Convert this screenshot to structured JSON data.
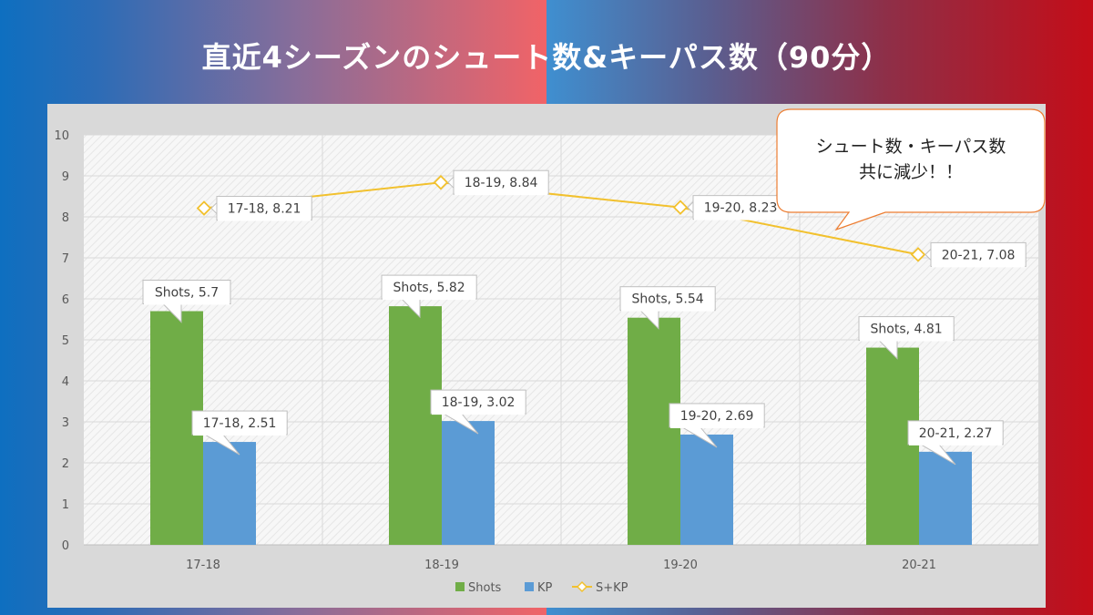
{
  "header": {
    "title": "直近4シーズンのシュート数&キーパス数（90分）"
  },
  "callout": {
    "lines": [
      "シュート数・キーパス数",
      "共に減少！！"
    ]
  },
  "colors": {
    "shots": "#70ad47",
    "kp": "#5b9bd5",
    "skp": "#f2c12e"
  },
  "chart_data": {
    "type": "bar",
    "categories": [
      "17-18",
      "18-19",
      "19-20",
      "20-21"
    ],
    "ylim": [
      0,
      10
    ],
    "yticks": [
      0,
      1,
      2,
      3,
      4,
      5,
      6,
      7,
      8,
      9,
      10
    ],
    "grid": true,
    "legend_position": "bottom",
    "series": [
      {
        "name": "Shots",
        "kind": "bar",
        "values": [
          5.7,
          5.82,
          5.54,
          4.81
        ],
        "labels": [
          "Shots, 5.7",
          "Shots, 5.82",
          "Shots, 5.54",
          "Shots, 4.81"
        ]
      },
      {
        "name": "KP",
        "kind": "bar",
        "values": [
          2.51,
          3.02,
          2.69,
          2.27
        ],
        "labels": [
          "17-18, 2.51",
          "18-19, 3.02",
          "19-20, 2.69",
          "20-21, 2.27"
        ]
      },
      {
        "name": "S+KP",
        "kind": "line",
        "values": [
          8.21,
          8.84,
          8.23,
          7.08
        ],
        "labels": [
          "17-18, 8.21",
          "18-19, 8.84",
          "19-20, 8.23",
          "20-21, 7.08"
        ]
      }
    ]
  }
}
